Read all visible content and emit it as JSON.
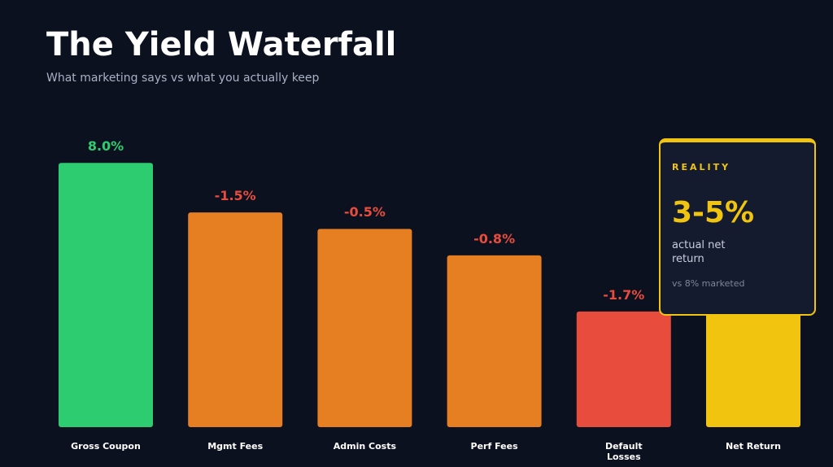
{
  "chart_data": {
    "type": "waterfall",
    "title": "The Yield Waterfall",
    "subtitle": "What marketing says vs what you actually keep",
    "categories": [
      "Gross Coupon",
      "Mgmt Fees",
      "Admin Costs",
      "Perf Fees",
      "Default Losses",
      "Net Return"
    ],
    "values": [
      8.0,
      -1.5,
      -0.5,
      -0.8,
      -1.7,
      null
    ],
    "value_labels": [
      "8.0%",
      "-1.5%",
      "-0.5%",
      "-0.8%",
      "-1.7%",
      null
    ],
    "colors": [
      "#2ecc71",
      "#e67e22",
      "#e67e22",
      "#e67e22",
      "#e74c3c",
      "#f1c40f"
    ],
    "label_colors": [
      "#2ecc71",
      "#e74c3c",
      "#e74c3c",
      "#e74c3c",
      "#e74c3c",
      null
    ],
    "callout": {
      "heading": "REALITY",
      "value": "3-5%",
      "text": "actual net return",
      "note": "vs 8% marketed"
    }
  }
}
